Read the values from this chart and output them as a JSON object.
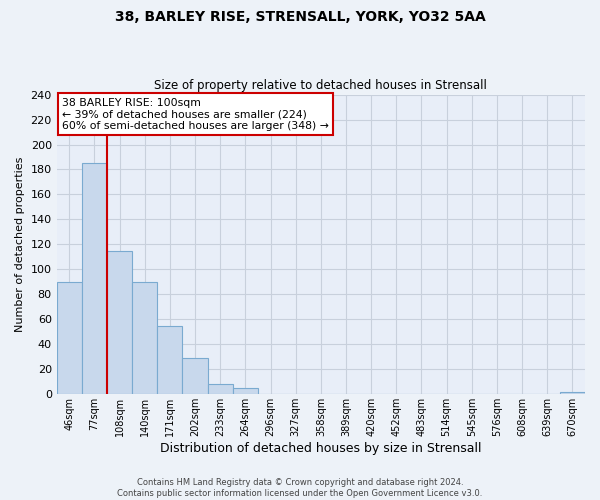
{
  "title": "38, BARLEY RISE, STRENSALL, YORK, YO32 5AA",
  "subtitle": "Size of property relative to detached houses in Strensall",
  "xlabel": "Distribution of detached houses by size in Strensall",
  "ylabel": "Number of detached properties",
  "bin_labels": [
    "46sqm",
    "77sqm",
    "108sqm",
    "140sqm",
    "171sqm",
    "202sqm",
    "233sqm",
    "264sqm",
    "296sqm",
    "327sqm",
    "358sqm",
    "389sqm",
    "420sqm",
    "452sqm",
    "483sqm",
    "514sqm",
    "545sqm",
    "576sqm",
    "608sqm",
    "639sqm",
    "670sqm"
  ],
  "bar_values": [
    90,
    185,
    115,
    90,
    55,
    29,
    8,
    5,
    0,
    0,
    0,
    0,
    0,
    0,
    0,
    0,
    0,
    0,
    0,
    0,
    2
  ],
  "bar_color": "#c8d8ec",
  "bar_edge_color": "#7aaad0",
  "vline_index": 1.5,
  "vline_color": "#cc0000",
  "annotation_title": "38 BARLEY RISE: 100sqm",
  "annotation_line1": "← 39% of detached houses are smaller (224)",
  "annotation_line2": "60% of semi-detached houses are larger (348) →",
  "annotation_box_color": "#ffffff",
  "annotation_box_edge": "#cc0000",
  "ylim": [
    0,
    240
  ],
  "yticks": [
    0,
    20,
    40,
    60,
    80,
    100,
    120,
    140,
    160,
    180,
    200,
    220,
    240
  ],
  "footer_line1": "Contains HM Land Registry data © Crown copyright and database right 2024.",
  "footer_line2": "Contains public sector information licensed under the Open Government Licence v3.0.",
  "bg_color": "#edf2f8",
  "plot_bg_color": "#e8eef8",
  "grid_color": "#c8d0dc"
}
